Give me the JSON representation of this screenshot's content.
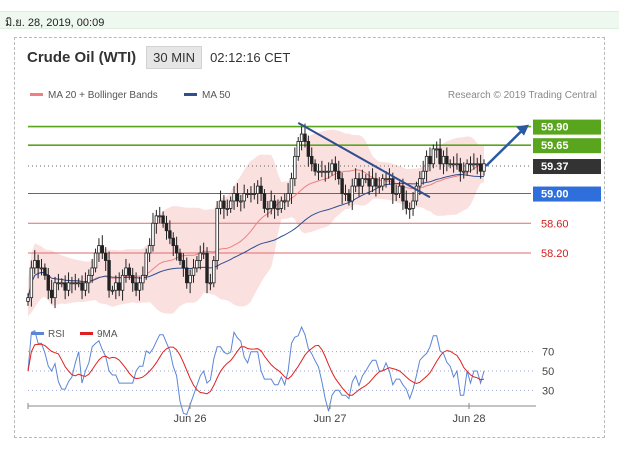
{
  "timestamp": "มิ.ย. 28, 2019, 00:09",
  "header": {
    "title": "Crude Oil (WTI)",
    "interval": "30 MIN",
    "clock": "02:12:16 CET"
  },
  "legend": {
    "ma20": {
      "label": "MA 20 + Bollinger Bands",
      "color": "#f08080"
    },
    "ma50": {
      "label": "MA 50",
      "color": "#2f4f8f"
    }
  },
  "credit": "Research © 2019 Trading Central",
  "chart_data": {
    "type": "candlestick",
    "x_ticks": [
      "Jun 26",
      "Jun 27",
      "Jun 28"
    ],
    "price_ylim": [
      57.3,
      60.15
    ],
    "price_levels": [
      {
        "value": 59.9,
        "label": "59.90",
        "kind": "resistance",
        "color": "#5aa51e"
      },
      {
        "value": 59.65,
        "label": "59.65",
        "kind": "resistance",
        "color": "#5aa51e"
      },
      {
        "value": 59.37,
        "label": "59.37",
        "kind": "last",
        "color": "#333333"
      },
      {
        "value": 59.0,
        "label": "59.00",
        "kind": "pivot",
        "color": "#2f6fdb"
      },
      {
        "value": 58.6,
        "label": "58.60",
        "kind": "support",
        "color": "#e06a6a"
      },
      {
        "value": 58.2,
        "label": "58.20",
        "kind": "support",
        "color": "#e06a6a"
      }
    ],
    "close": [
      57.6,
      58.0,
      58.1,
      58.0,
      58.0,
      57.9,
      57.7,
      57.6,
      57.8,
      57.8,
      57.8,
      57.7,
      57.8,
      57.8,
      57.8,
      57.8,
      57.7,
      57.8,
      57.9,
      58.0,
      58.2,
      58.3,
      58.2,
      58.1,
      57.7,
      57.7,
      57.8,
      57.7,
      57.9,
      58.0,
      57.9,
      57.8,
      57.7,
      57.8,
      57.9,
      58.2,
      58.3,
      58.6,
      58.7,
      58.7,
      58.6,
      58.5,
      58.4,
      58.3,
      58.2,
      58.1,
      58.0,
      57.8,
      57.9,
      58.0,
      58.1,
      58.2,
      58.2,
      57.8,
      57.8,
      58.1,
      58.8,
      58.9,
      58.8,
      58.8,
      58.9,
      59.0,
      58.9,
      58.9,
      59.0,
      59.0,
      59.0,
      59.0,
      59.1,
      59.0,
      58.8,
      58.8,
      58.9,
      58.8,
      58.8,
      58.9,
      58.9,
      59.0,
      59.2,
      59.5,
      59.7,
      59.8,
      59.7,
      59.5,
      59.4,
      59.3,
      59.3,
      59.3,
      59.3,
      59.3,
      59.4,
      59.3,
      59.2,
      59.0,
      59.0,
      58.9,
      59.1,
      59.2,
      59.1,
      59.2,
      59.2,
      59.1,
      59.2,
      59.1,
      59.1,
      59.2,
      59.2,
      59.2,
      59.0,
      59.0,
      59.1,
      58.9,
      58.8,
      58.8,
      58.9,
      59.1,
      59.2,
      59.3,
      59.5,
      59.4,
      59.6,
      59.6,
      59.4,
      59.5,
      59.4,
      59.4,
      59.4,
      59.4,
      59.3,
      59.3,
      59.4,
      59.4,
      59.4,
      59.4,
      59.3,
      59.4
    ],
    "rsi": {
      "labels": [
        "RSI",
        "9MA"
      ],
      "ticks": [
        70,
        50,
        30
      ],
      "ylim": [
        20,
        80
      ]
    }
  }
}
